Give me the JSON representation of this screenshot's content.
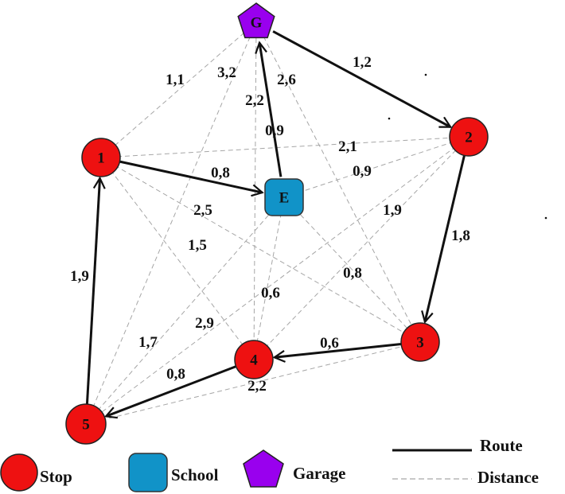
{
  "colors": {
    "stop": "#ee1111",
    "school": "#1193c8",
    "garage": "#9900ee",
    "route": "#111111",
    "distance": "#a6a6a6"
  },
  "nodes": [
    {
      "id": "G",
      "label": "G",
      "kind": "garage"
    },
    {
      "id": "1",
      "label": "1",
      "kind": "stop"
    },
    {
      "id": "2",
      "label": "2",
      "kind": "stop"
    },
    {
      "id": "E",
      "label": "E",
      "kind": "school"
    },
    {
      "id": "3",
      "label": "3",
      "kind": "stop"
    },
    {
      "id": "4",
      "label": "4",
      "kind": "stop"
    },
    {
      "id": "5",
      "label": "5",
      "kind": "stop"
    }
  ],
  "routes": [
    {
      "from": "G",
      "to": "2",
      "label": "1,2"
    },
    {
      "from": "2",
      "to": "3",
      "label": "1,8"
    },
    {
      "from": "3",
      "to": "4",
      "label": "0,6"
    },
    {
      "from": "4",
      "to": "5",
      "label": "0,8"
    },
    {
      "from": "5",
      "to": "1",
      "label": "1,9"
    },
    {
      "from": "1",
      "to": "E",
      "label": "0,8"
    },
    {
      "from": "E",
      "to": "G",
      "label": "0,9"
    }
  ],
  "distances": [
    {
      "from": "G",
      "to": "1",
      "label": "1,1"
    },
    {
      "from": "G",
      "to": "4",
      "label": "3,2"
    },
    {
      "from": "G",
      "to": "5",
      "label": "2,2"
    },
    {
      "from": "G",
      "to": "3",
      "label": "2,6"
    },
    {
      "from": "1",
      "to": "2",
      "label": "2,1"
    },
    {
      "from": "2",
      "to": "E",
      "label": "0,9"
    },
    {
      "from": "2",
      "to": "5",
      "label": "1,9"
    },
    {
      "from": "1",
      "to": "3",
      "label": "2,5"
    },
    {
      "from": "1",
      "to": "4",
      "label": "1,5"
    },
    {
      "from": "E",
      "to": "3",
      "label": "0,8"
    },
    {
      "from": "E",
      "to": "4",
      "label": "0,6"
    },
    {
      "from": "E",
      "to": "5",
      "label": "2,9"
    },
    {
      "from": "4",
      "to": "2",
      "label": "1,7"
    },
    {
      "from": "5",
      "to": "3",
      "label": "2,2"
    }
  ],
  "legend": {
    "stop": "Stop",
    "school": "School",
    "garage": "Garage",
    "route": "Route",
    "distance": "Distance"
  }
}
